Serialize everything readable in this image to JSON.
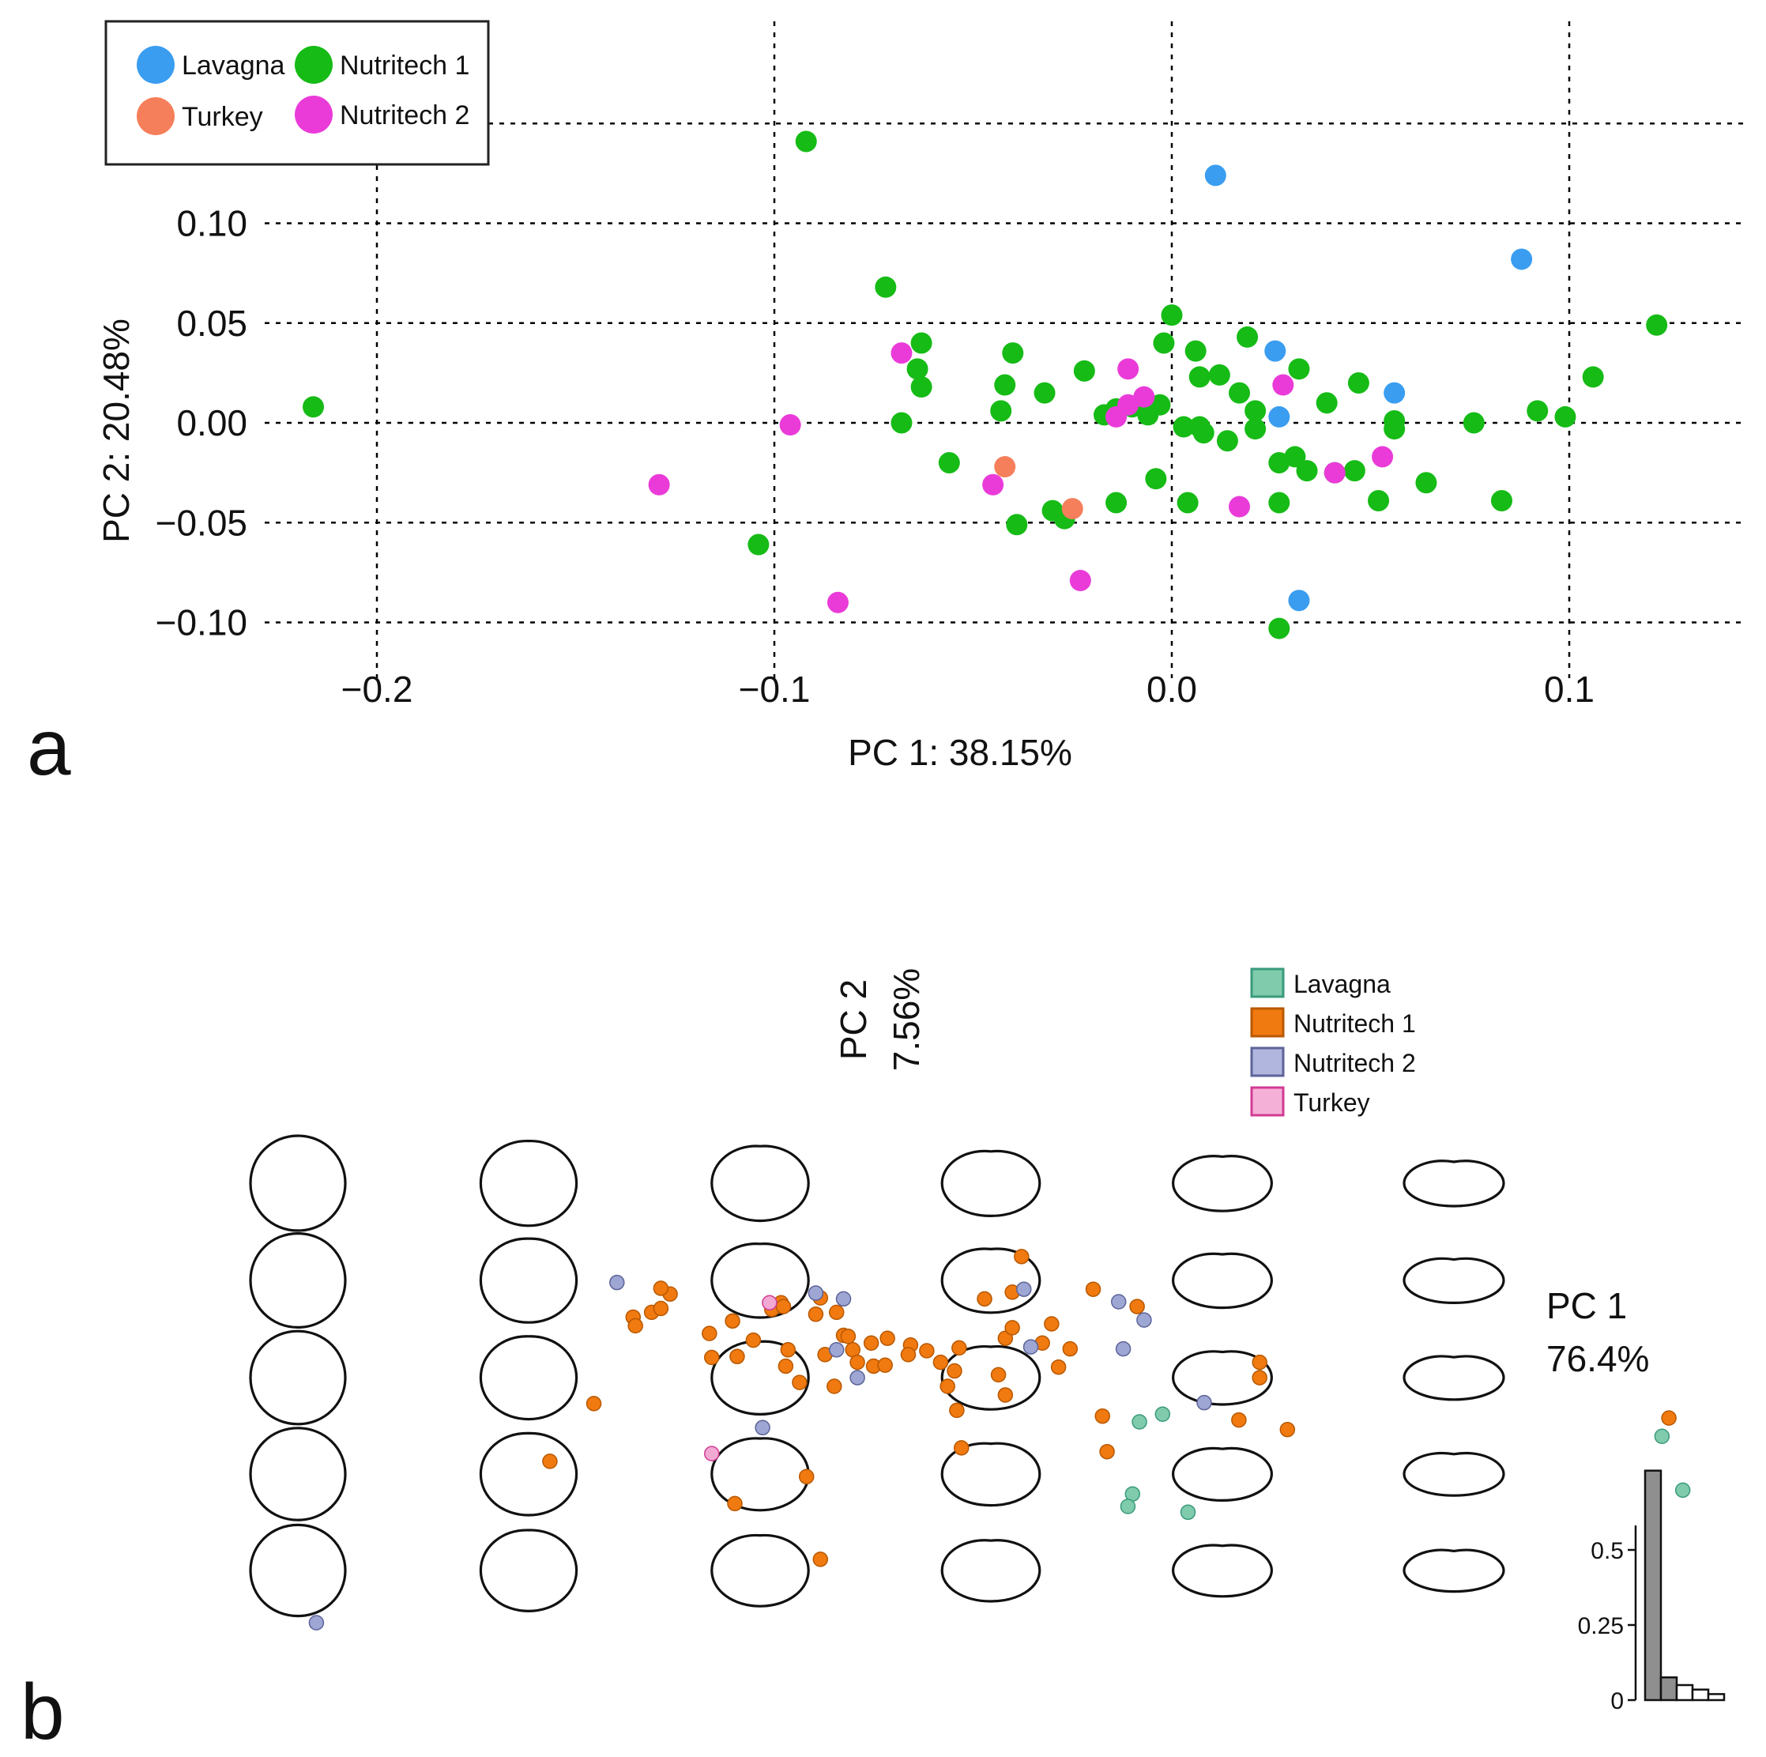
{
  "chart_data": [
    {
      "panel": "a",
      "type": "scatter",
      "title": "",
      "xlabel": "PC 1: 38.15%",
      "ylabel": "PC 2: 20.48%",
      "xlim": [
        -0.235,
        0.145
      ],
      "ylim": [
        -0.12,
        0.15
      ],
      "xticks": [
        -0.2,
        -0.1,
        0.0,
        0.1
      ],
      "xtick_labels": [
        "−0.2",
        "−0.1",
        "0.0",
        "0.1"
      ],
      "yticks": [
        -0.1,
        -0.05,
        0.0,
        0.05,
        0.1
      ],
      "ytick_labels": [
        "−0.10",
        "−0.05",
        "0.00",
        "0.05",
        "0.10"
      ],
      "grid": true,
      "legend_position": "top-left",
      "series": [
        {
          "name": "Lavagna",
          "color": "#3a9df0",
          "points": [
            [
              0.011,
              0.124
            ],
            [
              0.088,
              0.082
            ],
            [
              0.026,
              0.036
            ],
            [
              0.056,
              0.015
            ],
            [
              0.027,
              0.003
            ],
            [
              0.032,
              -0.089
            ]
          ]
        },
        {
          "name": "Nutritech 1",
          "color": "#16bb16",
          "points": [
            [
              -0.092,
              0.141
            ],
            [
              -0.072,
              0.068
            ],
            [
              -0.216,
              0.008
            ],
            [
              -0.063,
              0.04
            ],
            [
              -0.064,
              0.027
            ],
            [
              -0.063,
              0.018
            ],
            [
              -0.068,
              0.0
            ],
            [
              -0.056,
              -0.02
            ],
            [
              -0.04,
              0.035
            ],
            [
              -0.042,
              0.019
            ],
            [
              -0.043,
              0.006
            ],
            [
              -0.032,
              0.015
            ],
            [
              -0.022,
              0.026
            ],
            [
              -0.03,
              -0.044
            ],
            [
              -0.039,
              -0.051
            ],
            [
              -0.027,
              -0.048
            ],
            [
              -0.017,
              0.004
            ],
            [
              -0.014,
              0.007
            ],
            [
              -0.01,
              0.008
            ],
            [
              -0.006,
              0.004
            ],
            [
              -0.003,
              0.009
            ],
            [
              0.0,
              0.054
            ],
            [
              -0.002,
              0.04
            ],
            [
              0.006,
              0.036
            ],
            [
              0.007,
              0.023
            ],
            [
              0.012,
              0.024
            ],
            [
              0.017,
              0.015
            ],
            [
              0.019,
              0.043
            ],
            [
              0.021,
              0.006
            ],
            [
              0.021,
              -0.003
            ],
            [
              0.014,
              -0.009
            ],
            [
              0.007,
              -0.002
            ],
            [
              0.008,
              -0.005
            ],
            [
              0.003,
              -0.002
            ],
            [
              0.004,
              -0.04
            ],
            [
              -0.004,
              -0.028
            ],
            [
              -0.014,
              -0.04
            ],
            [
              0.032,
              0.027
            ],
            [
              0.039,
              0.01
            ],
            [
              0.047,
              0.02
            ],
            [
              0.056,
              0.001
            ],
            [
              0.056,
              -0.003
            ],
            [
              0.027,
              -0.02
            ],
            [
              0.031,
              -0.017
            ],
            [
              0.034,
              -0.024
            ],
            [
              0.041,
              -0.025
            ],
            [
              0.046,
              -0.024
            ],
            [
              0.027,
              -0.04
            ],
            [
              0.052,
              -0.039
            ],
            [
              0.064,
              -0.03
            ],
            [
              0.076,
              0.0
            ],
            [
              0.083,
              -0.039
            ],
            [
              0.092,
              0.006
            ],
            [
              0.099,
              0.003
            ],
            [
              0.106,
              0.023
            ],
            [
              0.122,
              0.049
            ],
            [
              -0.104,
              -0.061
            ],
            [
              0.027,
              -0.103
            ]
          ]
        },
        {
          "name": "Nutritech 2",
          "color": "#ea3bd9",
          "points": [
            [
              -0.068,
              0.035
            ],
            [
              -0.096,
              -0.001
            ],
            [
              -0.129,
              -0.031
            ],
            [
              -0.084,
              -0.09
            ],
            [
              -0.045,
              -0.031
            ],
            [
              -0.023,
              -0.079
            ],
            [
              -0.011,
              0.027
            ],
            [
              -0.014,
              0.003
            ],
            [
              -0.011,
              0.009
            ],
            [
              -0.007,
              0.013
            ],
            [
              0.028,
              0.019
            ],
            [
              0.053,
              -0.017
            ],
            [
              0.041,
              -0.025
            ],
            [
              0.017,
              -0.042
            ]
          ]
        },
        {
          "name": "Turkey",
          "color": "#f57f5b",
          "points": [
            [
              -0.042,
              -0.022
            ],
            [
              -0.025,
              -0.043
            ]
          ]
        }
      ],
      "legend": [
        {
          "name": "Lavagna",
          "color": "#3a9df0"
        },
        {
          "name": "Nutritech 1",
          "color": "#16bb16"
        },
        {
          "name": "Turkey",
          "color": "#f57f5b"
        },
        {
          "name": "Nutritech 2",
          "color": "#ea3bd9"
        }
      ]
    },
    {
      "panel": "b",
      "type": "scatter",
      "title": "",
      "xlabel": "PC 1",
      "xlabel_value": "76.4%",
      "ylabel": "PC 2",
      "ylabel_value": "7.56%",
      "xlim": [
        0,
        6
      ],
      "ylim": [
        0,
        5
      ],
      "grid": false,
      "shape_grid": {
        "columns": 6,
        "rows": 5
      },
      "legend_position": "top-right",
      "series": [
        {
          "name": "Lavagna",
          "color": "#7fcbac",
          "points": [
            [
              3.64,
              2.5
            ],
            [
              3.74,
              2.58
            ],
            [
              3.61,
              1.75
            ],
            [
              3.85,
              1.56
            ],
            [
              5.9,
              2.35
            ],
            [
              5.99,
              1.79
            ],
            [
              3.59,
              1.62
            ]
          ]
        },
        {
          "name": "Nutritech 1",
          "color": "#f07a10",
          "points": [
            [
              1.79,
              3.17
            ],
            [
              1.28,
              2.69
            ],
            [
              1.09,
              2.09
            ],
            [
              1.61,
              3.83
            ],
            [
              1.45,
              3.59
            ],
            [
              1.57,
              3.89
            ],
            [
              1.46,
              3.5
            ],
            [
              1.53,
              3.64
            ],
            [
              1.78,
              3.42
            ],
            [
              2.24,
              3.62
            ],
            [
              2.33,
              3.64
            ],
            [
              2.28,
              3.2
            ],
            [
              2.32,
              2.87
            ],
            [
              2.36,
              3.4
            ],
            [
              2.4,
              3.25
            ],
            [
              2.48,
              3.32
            ],
            [
              2.55,
              3.37
            ],
            [
              2.65,
              3.3
            ],
            [
              2.49,
              3.08
            ],
            [
              2.64,
              3.2
            ],
            [
              2.26,
              3.79
            ],
            [
              2.17,
              2.91
            ],
            [
              1.97,
              3.35
            ],
            [
              2.11,
              3.08
            ],
            [
              2.09,
              3.74
            ],
            [
              2.05,
              3.67
            ],
            [
              2.1,
              3.7
            ],
            [
              1.88,
              3.55
            ],
            [
              2.12,
              3.25
            ],
            [
              2.42,
              3.12
            ],
            [
              2.54,
              3.09
            ],
            [
              2.78,
              3.12
            ],
            [
              2.72,
              3.24
            ],
            [
              2.86,
              3.27
            ],
            [
              2.84,
              3.03
            ],
            [
              2.81,
              2.87
            ],
            [
              2.85,
              2.62
            ],
            [
              2.97,
              3.78
            ],
            [
              3.03,
              2.99
            ],
            [
              3.06,
              2.78
            ],
            [
              3.06,
              3.37
            ],
            [
              3.09,
              3.48
            ],
            [
              3.26,
              3.52
            ],
            [
              3.22,
              3.32
            ],
            [
              3.34,
              3.26
            ],
            [
              3.29,
              3.07
            ],
            [
              3.13,
              4.22
            ],
            [
              3.48,
              2.56
            ],
            [
              2.87,
              2.23
            ],
            [
              3.5,
              2.19
            ],
            [
              3.44,
              3.88
            ],
            [
              3.63,
              3.7
            ],
            [
              4.07,
              2.52
            ],
            [
              4.16,
              3.12
            ],
            [
              4.16,
              2.96
            ],
            [
              4.28,
              2.42
            ],
            [
              3.09,
              3.85
            ],
            [
              2.38,
              3.39
            ],
            [
              1.89,
              1.65
            ],
            [
              2.26,
              1.07
            ],
            [
              1.57,
              3.68
            ],
            [
              5.93,
              2.54
            ],
            [
              1.9,
              3.18
            ],
            [
              2.2,
              1.93
            ]
          ]
        },
        {
          "name": "Nutritech 2",
          "color": "#9ea6d3",
          "points": [
            [
              1.38,
              3.95
            ],
            [
              2.24,
              3.84
            ],
            [
              2.36,
              3.78
            ],
            [
              2.33,
              3.25
            ],
            [
              2.42,
              2.96
            ],
            [
              2.01,
              2.44
            ],
            [
              3.14,
              3.88
            ],
            [
              3.17,
              3.28
            ],
            [
              3.55,
              3.75
            ],
            [
              3.66,
              3.56
            ],
            [
              3.57,
              3.26
            ],
            [
              3.92,
              2.7
            ],
            [
              0.08,
              0.41
            ]
          ]
        },
        {
          "name": "Turkey",
          "color": "#f1a9d3",
          "points": [
            [
              2.04,
              3.74
            ],
            [
              1.79,
              2.17
            ]
          ]
        }
      ],
      "legend": [
        {
          "name": "Lavagna",
          "fill": "#7fcbac",
          "stroke": "#3a9a7c"
        },
        {
          "name": "Nutritech 1",
          "fill": "#f07a10",
          "stroke": "#b85800"
        },
        {
          "name": "Nutritech 2",
          "fill": "#b1b6df",
          "stroke": "#5d6399"
        },
        {
          "name": "Turkey",
          "fill": "#f5b0d7",
          "stroke": "#d23b94"
        }
      ],
      "eigenvalue_bars": {
        "values": [
          0.764,
          0.0756,
          0.05,
          0.035,
          0.02
        ],
        "highlight_count": 2,
        "yticks": [
          0,
          0.25,
          0.5
        ],
        "ytick_labels": [
          "0",
          "0.25",
          "0.5"
        ]
      }
    }
  ],
  "panel_labels": {
    "a": "a",
    "b": "b"
  }
}
